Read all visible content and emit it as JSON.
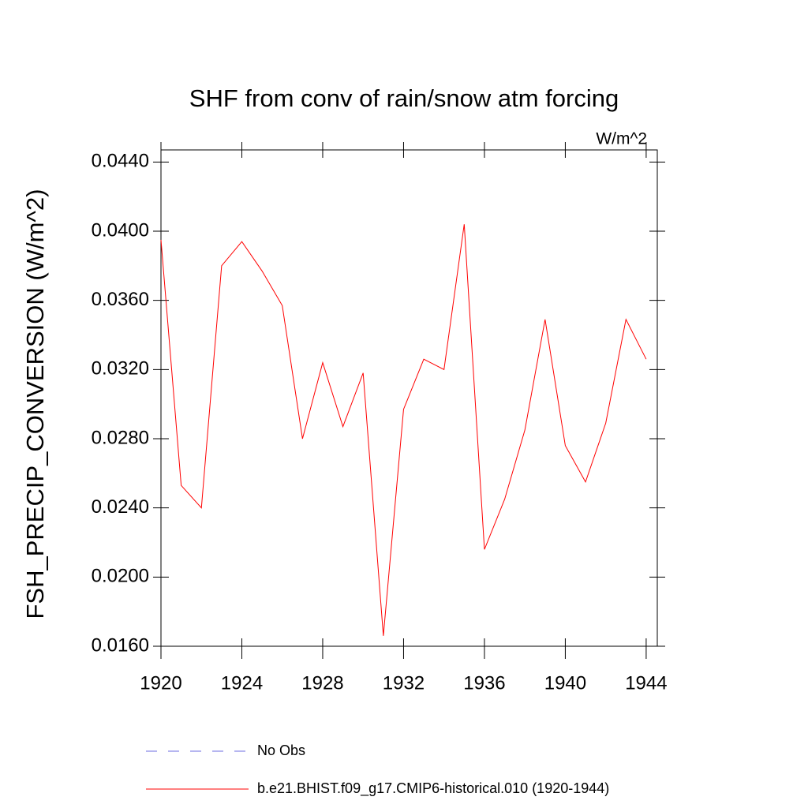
{
  "chart_data": {
    "type": "line",
    "title": "SHF from conv of rain/snow atm forcing",
    "units_label": "W/m^2",
    "y_label": "FSH_PRECIP_CONVERSION  (W/m^2)",
    "x": [
      1920,
      1921,
      1922,
      1923,
      1924,
      1925,
      1926,
      1927,
      1928,
      1929,
      1930,
      1931,
      1932,
      1933,
      1934,
      1935,
      1936,
      1937,
      1938,
      1939,
      1940,
      1941,
      1942,
      1943,
      1944
    ],
    "series": [
      {
        "name": "b.e21.BHIST.f09_g17.CMIP6-historical.010 (1920-1944)",
        "color": "#ff0000",
        "values": [
          0.0395,
          0.0253,
          0.024,
          0.038,
          0.0394,
          0.0377,
          0.0357,
          0.028,
          0.0324,
          0.0287,
          0.0318,
          0.0166,
          0.0297,
          0.0326,
          0.032,
          0.0404,
          0.0216,
          0.0245,
          0.0285,
          0.0349,
          0.0276,
          0.0255,
          0.0289,
          0.0349,
          0.0326
        ]
      }
    ],
    "extra_legend": [
      {
        "name": "No Obs",
        "color": "#6e6ee0",
        "dashed": true
      }
    ],
    "xlim": [
      1920,
      1944.55
    ],
    "ylim": [
      0.016,
      0.0447
    ],
    "xticks": [
      1920,
      1924,
      1928,
      1932,
      1936,
      1940,
      1944
    ],
    "yticks": [
      {
        "value": 0.016,
        "label": "0.0160"
      },
      {
        "value": 0.02,
        "label": "0.0200"
      },
      {
        "value": 0.024,
        "label": "0.0240"
      },
      {
        "value": 0.028,
        "label": "0.0280"
      },
      {
        "value": 0.032,
        "label": "0.0320"
      },
      {
        "value": 0.036,
        "label": "0.0360"
      },
      {
        "value": 0.04,
        "label": "0.0400"
      },
      {
        "value": 0.044,
        "label": "0.0440"
      }
    ]
  }
}
